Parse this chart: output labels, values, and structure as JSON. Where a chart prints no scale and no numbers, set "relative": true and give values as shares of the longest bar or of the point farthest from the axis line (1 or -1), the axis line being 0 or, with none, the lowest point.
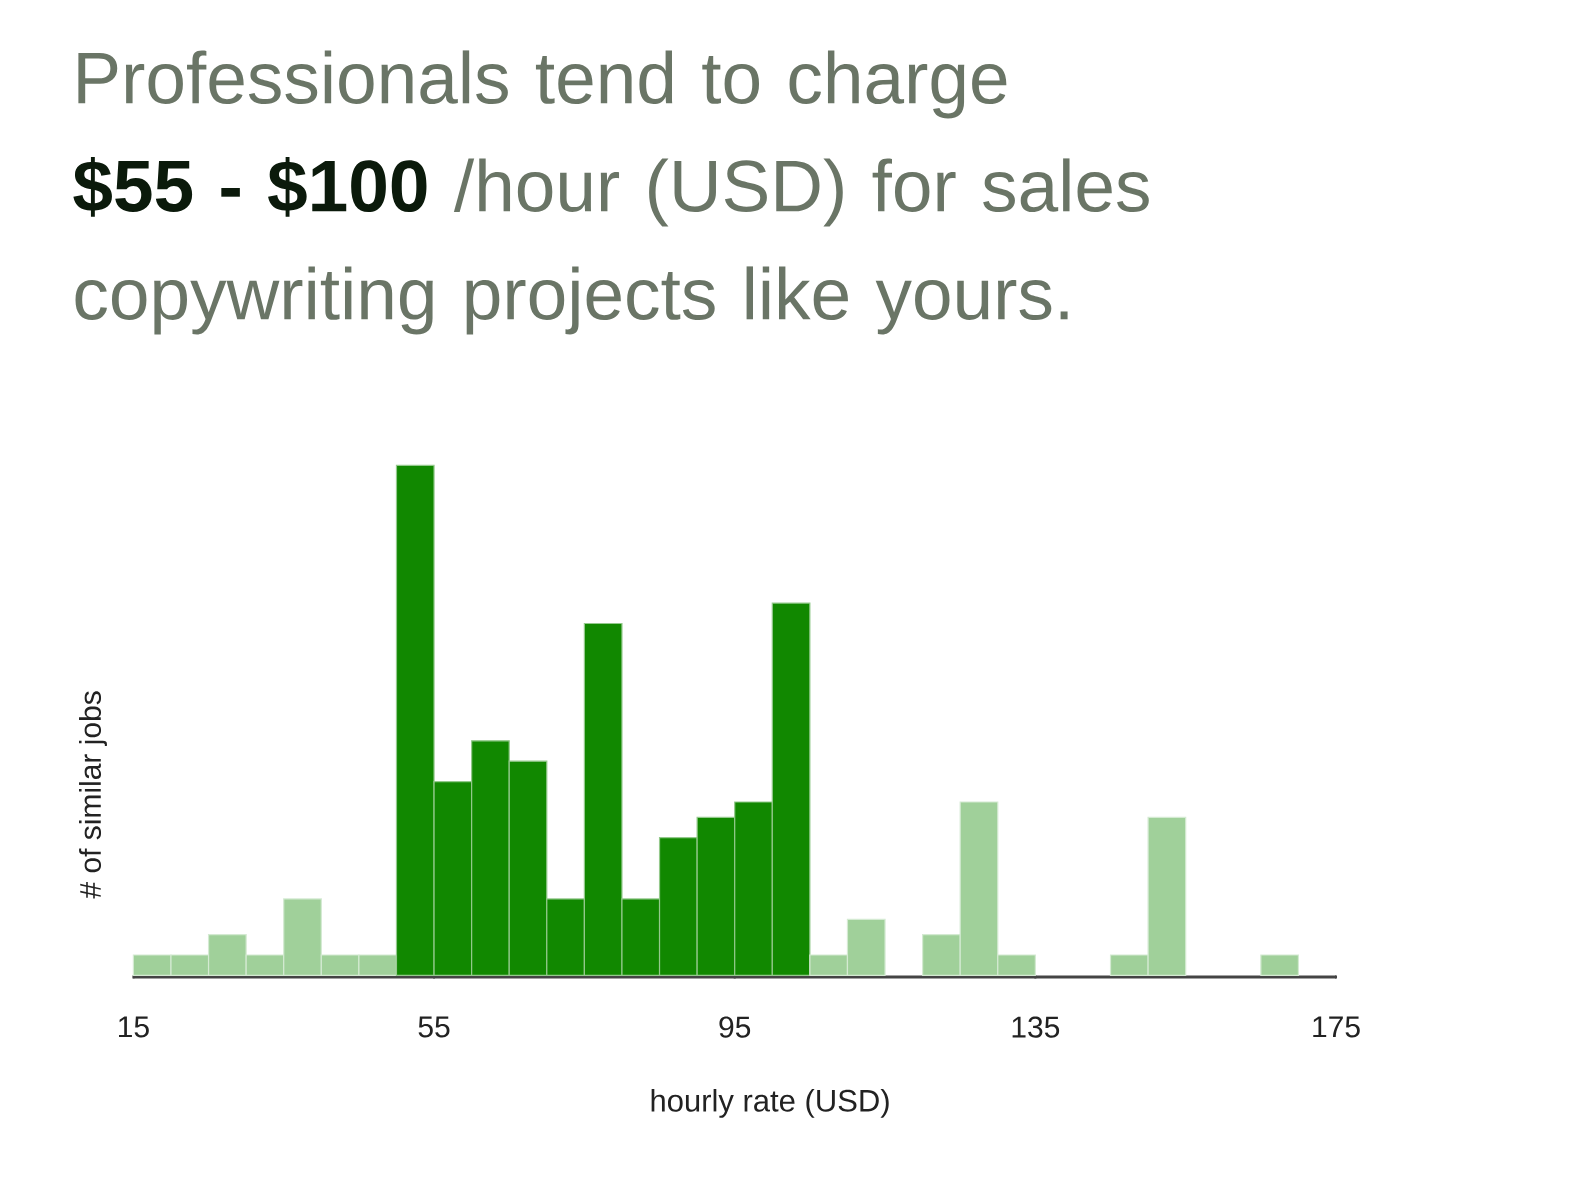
{
  "chart_data": {
    "type": "bar",
    "title": "Professionals tend to charge **$55 - $100** /hour (USD) for sales copywriting projects like yours.",
    "xlabel": "hourly rate (USD)",
    "ylabel": "# of similar jobs",
    "relative": true,
    "x": [
      17.5,
      22.5,
      27.5,
      32.5,
      37.5,
      42.5,
      47.5,
      52.5,
      57.5,
      62.5,
      67.5,
      72.5,
      77.5,
      82.5,
      87.5,
      92.5,
      97.5,
      102.5,
      107.5,
      112.5,
      117.5,
      122.5,
      127.5,
      132.5,
      137.5,
      142.5,
      147.5,
      152.5,
      157.5,
      162.5,
      167.5,
      172.5
    ],
    "values": [
      0.04,
      0.04,
      0.08,
      0.04,
      0.15,
      0.04,
      0.04,
      1,
      0.38,
      0.46,
      0.42,
      0.15,
      0.69,
      0.15,
      0.27,
      0.31,
      0.34,
      0.73,
      0.04,
      0.11,
      0,
      0.08,
      0.34,
      0.04,
      0,
      0,
      0.04,
      0.31,
      0,
      0,
      0.04,
      0
    ],
    "colors": [
      "#a0d09a",
      "#a0d09a",
      "#a0d09a",
      "#a0d09a",
      "#a0d09a",
      "#a0d09a",
      "#a0d09a",
      "#118800",
      "#118800",
      "#118800",
      "#118800",
      "#118800",
      "#118800",
      "#118800",
      "#118800",
      "#118800",
      "#118800",
      "#118800",
      "#a0d09a",
      "#a0d09a",
      "#a0d09a",
      "#a0d09a",
      "#a0d09a",
      "#a0d09a",
      "#a0d09a",
      "#a0d09a",
      "#a0d09a",
      "#a0d09a",
      "#a0d09a",
      "#a0d09a",
      "#a0d09a",
      "#a0d09a"
    ],
    "xlim": [
      15,
      175
    ],
    "xticks": [
      15,
      55,
      95,
      135,
      175
    ]
  }
}
